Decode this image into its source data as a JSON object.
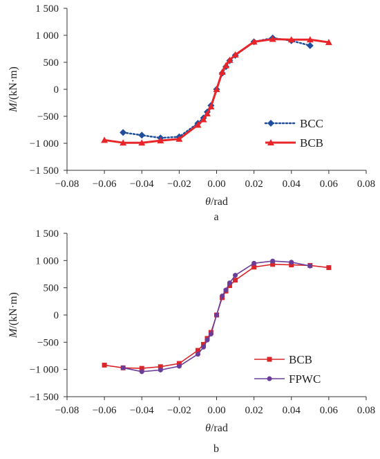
{
  "chart_data": [
    {
      "type": "line",
      "panel_label": "a",
      "xlabel_var": "θ",
      "xlabel_unit": "/rad",
      "ylabel_var": "M",
      "ylabel_unit": "/(kN·m)",
      "xlim": [
        -0.08,
        0.08
      ],
      "ylim": [
        -1500,
        1500
      ],
      "x_ticks": [
        -0.08,
        -0.06,
        -0.04,
        -0.02,
        0.0,
        0.02,
        0.04,
        0.06,
        0.08
      ],
      "x_tick_labels": [
        "−0.08",
        "−0.06",
        "−0.04",
        "−0.02",
        "0.00",
        "0.02",
        "0.04",
        "0.06",
        "0.08"
      ],
      "y_ticks": [
        1500,
        1000,
        500,
        0,
        -500,
        -1000,
        -1500
      ],
      "y_tick_labels": [
        "1 500",
        "1 000",
        "500",
        "0",
        "−500",
        "−1 000",
        "−1 500"
      ],
      "grid": false,
      "legend_position": "bottom-right",
      "series": [
        {
          "name": "BCC",
          "color": "#1f4e9c",
          "line_style": "dotted",
          "marker": "diamond",
          "x": [
            -0.05,
            -0.04,
            -0.03,
            -0.02,
            -0.01,
            -0.007,
            -0.005,
            -0.003,
            0.0,
            0.003,
            0.005,
            0.007,
            0.01,
            0.02,
            0.03,
            0.04,
            0.05
          ],
          "y": [
            -800,
            -850,
            -900,
            -880,
            -630,
            -530,
            -420,
            -300,
            0,
            300,
            420,
            530,
            630,
            880,
            950,
            900,
            810
          ]
        },
        {
          "name": "BCB",
          "color": "#e8262a",
          "line_style": "solid",
          "marker": "triangle",
          "x": [
            -0.06,
            -0.05,
            -0.04,
            -0.03,
            -0.02,
            -0.01,
            -0.007,
            -0.005,
            -0.003,
            0.0,
            0.003,
            0.005,
            0.007,
            0.01,
            0.02,
            0.03,
            0.04,
            0.05,
            0.06
          ],
          "y": [
            -940,
            -990,
            -990,
            -950,
            -920,
            -660,
            -560,
            -450,
            -320,
            0,
            320,
            440,
            540,
            640,
            880,
            930,
            920,
            920,
            870
          ]
        }
      ]
    },
    {
      "type": "line",
      "panel_label": "b",
      "xlabel_var": "θ",
      "xlabel_unit": "/rad",
      "ylabel_var": "M",
      "ylabel_unit": "/(kN·m)",
      "xlim": [
        -0.08,
        0.08
      ],
      "ylim": [
        -1500,
        1500
      ],
      "x_ticks": [
        -0.08,
        -0.06,
        -0.04,
        -0.02,
        0.0,
        0.02,
        0.04,
        0.06,
        0.08
      ],
      "x_tick_labels": [
        "−0.08",
        "−0.06",
        "−0.04",
        "−0.02",
        "0.00",
        "0.02",
        "0.04",
        "0.06",
        "0.08"
      ],
      "y_ticks": [
        1500,
        1000,
        500,
        0,
        -500,
        -1000,
        -1500
      ],
      "y_tick_labels": [
        "1 500",
        "1 000",
        "500",
        "0",
        "−500",
        "−1 000",
        "−1 500"
      ],
      "grid": false,
      "legend_position": "bottom-right",
      "series": [
        {
          "name": "BCB",
          "color": "#d9262a",
          "line_style": "solid",
          "marker": "square",
          "x": [
            -0.06,
            -0.05,
            -0.04,
            -0.03,
            -0.02,
            -0.01,
            -0.007,
            -0.005,
            -0.003,
            0.0,
            0.003,
            0.005,
            0.007,
            0.01,
            0.02,
            0.03,
            0.04,
            0.05,
            0.06
          ],
          "y": [
            -920,
            -970,
            -980,
            -950,
            -890,
            -650,
            -540,
            -430,
            -320,
            0,
            320,
            440,
            540,
            640,
            880,
            930,
            920,
            910,
            870
          ]
        },
        {
          "name": "FPWC",
          "color": "#6a3d9a",
          "line_style": "solid",
          "marker": "circle",
          "x": [
            -0.05,
            -0.04,
            -0.03,
            -0.02,
            -0.01,
            -0.007,
            -0.005,
            -0.003,
            0.0,
            0.003,
            0.005,
            0.007,
            0.01,
            0.02,
            0.03,
            0.04,
            0.05
          ],
          "y": [
            -970,
            -1040,
            -1010,
            -940,
            -720,
            -590,
            -460,
            -350,
            0,
            350,
            460,
            590,
            730,
            950,
            990,
            970,
            900
          ]
        }
      ]
    }
  ]
}
